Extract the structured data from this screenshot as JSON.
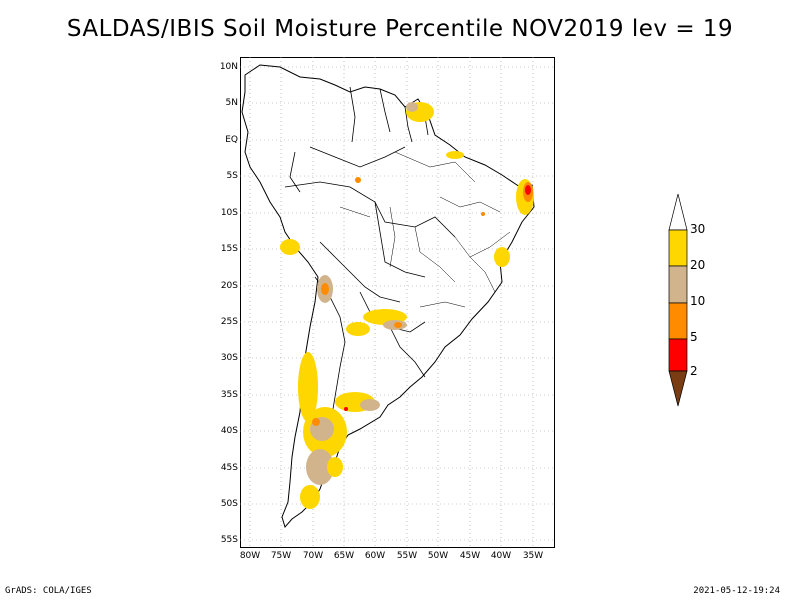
{
  "title": "SALDAS/IBIS Soil Moisture Percentile NOV2019 lev = 19",
  "lat_labels": [
    "10N",
    "5N",
    "EQ",
    "5S",
    "10S",
    "15S",
    "20S",
    "25S",
    "30S",
    "35S",
    "40S",
    "45S",
    "50S",
    "55S"
  ],
  "lon_labels": [
    "80W",
    "75W",
    "70W",
    "65W",
    "60W",
    "55W",
    "50W",
    "45W",
    "40W",
    "35W"
  ],
  "colorbar": {
    "labels": [
      "2",
      "5",
      "10",
      "20",
      "30"
    ],
    "colors": {
      "below_2": "#7a3c12",
      "2_5": "#ff0000",
      "5_10": "#ff8c00",
      "10_20": "#d2b48c",
      "20_30": "#ffd700",
      "above_30": "#ffffff"
    }
  },
  "footer": {
    "left": "GrADS: COLA/IGES",
    "right": "2021-05-12-19:24"
  }
}
